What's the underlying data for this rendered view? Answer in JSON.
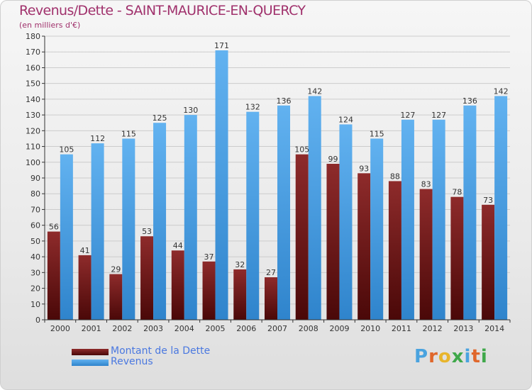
{
  "title": "Revenus/Dette - SAINT-MAURICE-EN-QUERCY",
  "subtitle": "(en milliers d'€)",
  "logo_text": "Proxiti",
  "colors": {
    "dette": "#7a1f1f",
    "revenus": "#4fa3e6",
    "title": "#a0316c",
    "legend_text": "#4a78e0"
  },
  "legend": [
    {
      "label": "Montant de la Dette",
      "color": "#7a1f1f"
    },
    {
      "label": "Revenus",
      "color": "#4fa3e6"
    }
  ],
  "chart_data": {
    "type": "bar",
    "title": "Revenus/Dette - SAINT-MAURICE-EN-QUERCY",
    "subtitle": "(en milliers d'€)",
    "xlabel": "",
    "ylabel": "",
    "ylim": [
      0,
      180
    ],
    "ytick_step": 10,
    "grid": true,
    "legend_position": "bottom-left",
    "categories": [
      "2000",
      "2001",
      "2002",
      "2003",
      "2004",
      "2005",
      "2006",
      "2007",
      "2008",
      "2009",
      "2010",
      "2011",
      "2012",
      "2013",
      "2014"
    ],
    "series": [
      {
        "name": "Montant de la Dette",
        "values": [
          56,
          41,
          29,
          53,
          44,
          37,
          32,
          27,
          105,
          99,
          93,
          88,
          83,
          78,
          73
        ]
      },
      {
        "name": "Revenus",
        "values": [
          105,
          112,
          115,
          125,
          130,
          171,
          132,
          136,
          142,
          124,
          115,
          127,
          127,
          136,
          142
        ]
      }
    ]
  }
}
